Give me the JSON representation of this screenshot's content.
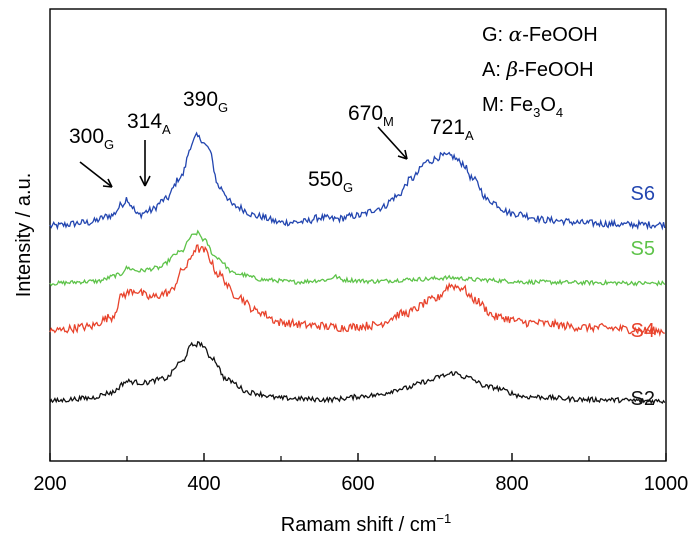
{
  "chart_data": {
    "type": "line",
    "xlabel": "Ramam shift / cm",
    "xlabel_sup": "−1",
    "ylabel": "Intensity / a.u.",
    "xlim": [
      200,
      1000
    ],
    "xticks": [
      "200",
      "400",
      "600",
      "800",
      "1000"
    ],
    "grid": false,
    "legend": {
      "position": "top-right",
      "entries": [
        {
          "prefix": "G: ",
          "greek": "α",
          "rest": "-FeOOH"
        },
        {
          "prefix": "A: ",
          "greek": "β",
          "rest": "-FeOOH"
        },
        {
          "prefix": "M: Fe",
          "sub1": "3",
          "mid": "O",
          "sub2": "4"
        }
      ]
    },
    "annotations": [
      {
        "main": "300",
        "sub": "G",
        "x": 300
      },
      {
        "main": "314",
        "sub": "A",
        "x": 314
      },
      {
        "main": "390",
        "sub": "G",
        "x": 390
      },
      {
        "main": "550",
        "sub": "G",
        "x": 550
      },
      {
        "main": "670",
        "sub": "M",
        "x": 670
      },
      {
        "main": "721",
        "sub": "A",
        "x": 721
      }
    ],
    "series": [
      {
        "name": "S6",
        "color": "#2346b0",
        "baseline": 0.2,
        "noise": 0.05,
        "x": [
          200,
          250,
          280,
          295,
          300,
          305,
          314,
          330,
          350,
          370,
          385,
          390,
          395,
          405,
          420,
          440,
          470,
          500,
          530,
          550,
          570,
          600,
          630,
          650,
          670,
          690,
          710,
          721,
          735,
          750,
          770,
          800,
          850,
          900,
          950,
          1000
        ],
        "y": [
          0.0,
          0.05,
          0.15,
          0.32,
          0.4,
          0.3,
          0.16,
          0.22,
          0.38,
          0.7,
          1.18,
          1.28,
          1.25,
          1.12,
          0.55,
          0.28,
          0.14,
          0.05,
          0.06,
          0.12,
          0.1,
          0.15,
          0.26,
          0.42,
          0.68,
          0.92,
          1.0,
          1.0,
          0.9,
          0.66,
          0.36,
          0.18,
          0.08,
          0.04,
          0.02,
          0.02
        ]
      },
      {
        "name": "S5",
        "color": "#5ec34a",
        "baseline": 1.02,
        "noise": 0.03,
        "x": [
          200,
          260,
          290,
          300,
          315,
          340,
          370,
          385,
          392,
          400,
          415,
          440,
          480,
          520,
          560,
          570,
          580,
          620,
          680,
          720,
          760,
          820,
          900,
          1000
        ],
        "y": [
          0.0,
          0.03,
          0.12,
          0.22,
          0.18,
          0.22,
          0.45,
          0.68,
          0.72,
          0.62,
          0.38,
          0.14,
          0.05,
          0.02,
          0.05,
          0.1,
          0.05,
          0.03,
          0.06,
          0.08,
          0.05,
          0.02,
          0.01,
          0.0
        ]
      },
      {
        "name": "S4",
        "color": "#e8432c",
        "baseline": 1.7,
        "noise": 0.06,
        "x": [
          200,
          250,
          280,
          295,
          310,
          330,
          355,
          375,
          390,
          400,
          420,
          440,
          470,
          500,
          540,
          580,
          620,
          660,
          700,
          720,
          735,
          750,
          780,
          820,
          900,
          1000
        ],
        "y": [
          0.0,
          0.06,
          0.2,
          0.52,
          0.58,
          0.48,
          0.55,
          0.9,
          1.18,
          1.15,
          0.8,
          0.52,
          0.28,
          0.12,
          0.08,
          0.05,
          0.08,
          0.25,
          0.45,
          0.65,
          0.62,
          0.45,
          0.2,
          0.12,
          0.05,
          0.0
        ]
      },
      {
        "name": "S2",
        "color": "#111111",
        "baseline": 2.7,
        "noise": 0.035,
        "x": [
          200,
          250,
          280,
          300,
          320,
          350,
          370,
          385,
          395,
          410,
          430,
          460,
          500,
          560,
          620,
          660,
          690,
          710,
          725,
          740,
          770,
          820,
          900,
          1000
        ],
        "y": [
          0.0,
          0.04,
          0.12,
          0.28,
          0.26,
          0.32,
          0.55,
          0.8,
          0.82,
          0.62,
          0.3,
          0.12,
          0.04,
          0.02,
          0.08,
          0.18,
          0.28,
          0.36,
          0.4,
          0.34,
          0.2,
          0.06,
          0.02,
          0.0
        ]
      }
    ]
  }
}
